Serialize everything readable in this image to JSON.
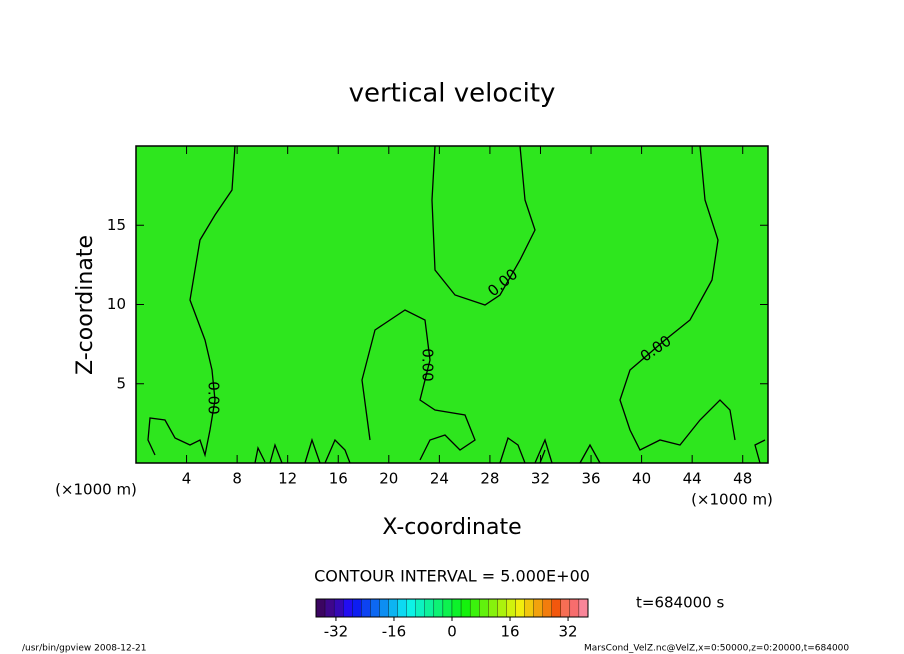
{
  "chart_data": {
    "type": "contour",
    "title": "vertical velocity",
    "x_label": "X-coordinate",
    "y_label": "Z-coordinate",
    "x_unit": "(×1000 m)",
    "xlim": [
      0,
      50
    ],
    "xticks": [
      4,
      8,
      12,
      16,
      20,
      24,
      28,
      32,
      36,
      40,
      44,
      48
    ],
    "ylim": [
      0,
      20
    ],
    "yticks": [
      5,
      10,
      15
    ],
    "color": "#2ee61e",
    "contour_labels": [
      "0.00",
      "0.00",
      "0.00",
      "0.00"
    ],
    "contour_interval": "CONTOUR INTERVAL = 5.000E+00",
    "colorbar": {
      "lim": [
        -37.5,
        37.5
      ],
      "ticks": [
        -32,
        -16,
        0,
        16,
        32
      ]
    },
    "time": "t=684000 s",
    "footer_left": "/usr/bin/gpview  2008-12-21",
    "footer_right": "MarsCond_VelZ.nc@VelZ,x=0:50000,z=0:20000,t=684000"
  }
}
